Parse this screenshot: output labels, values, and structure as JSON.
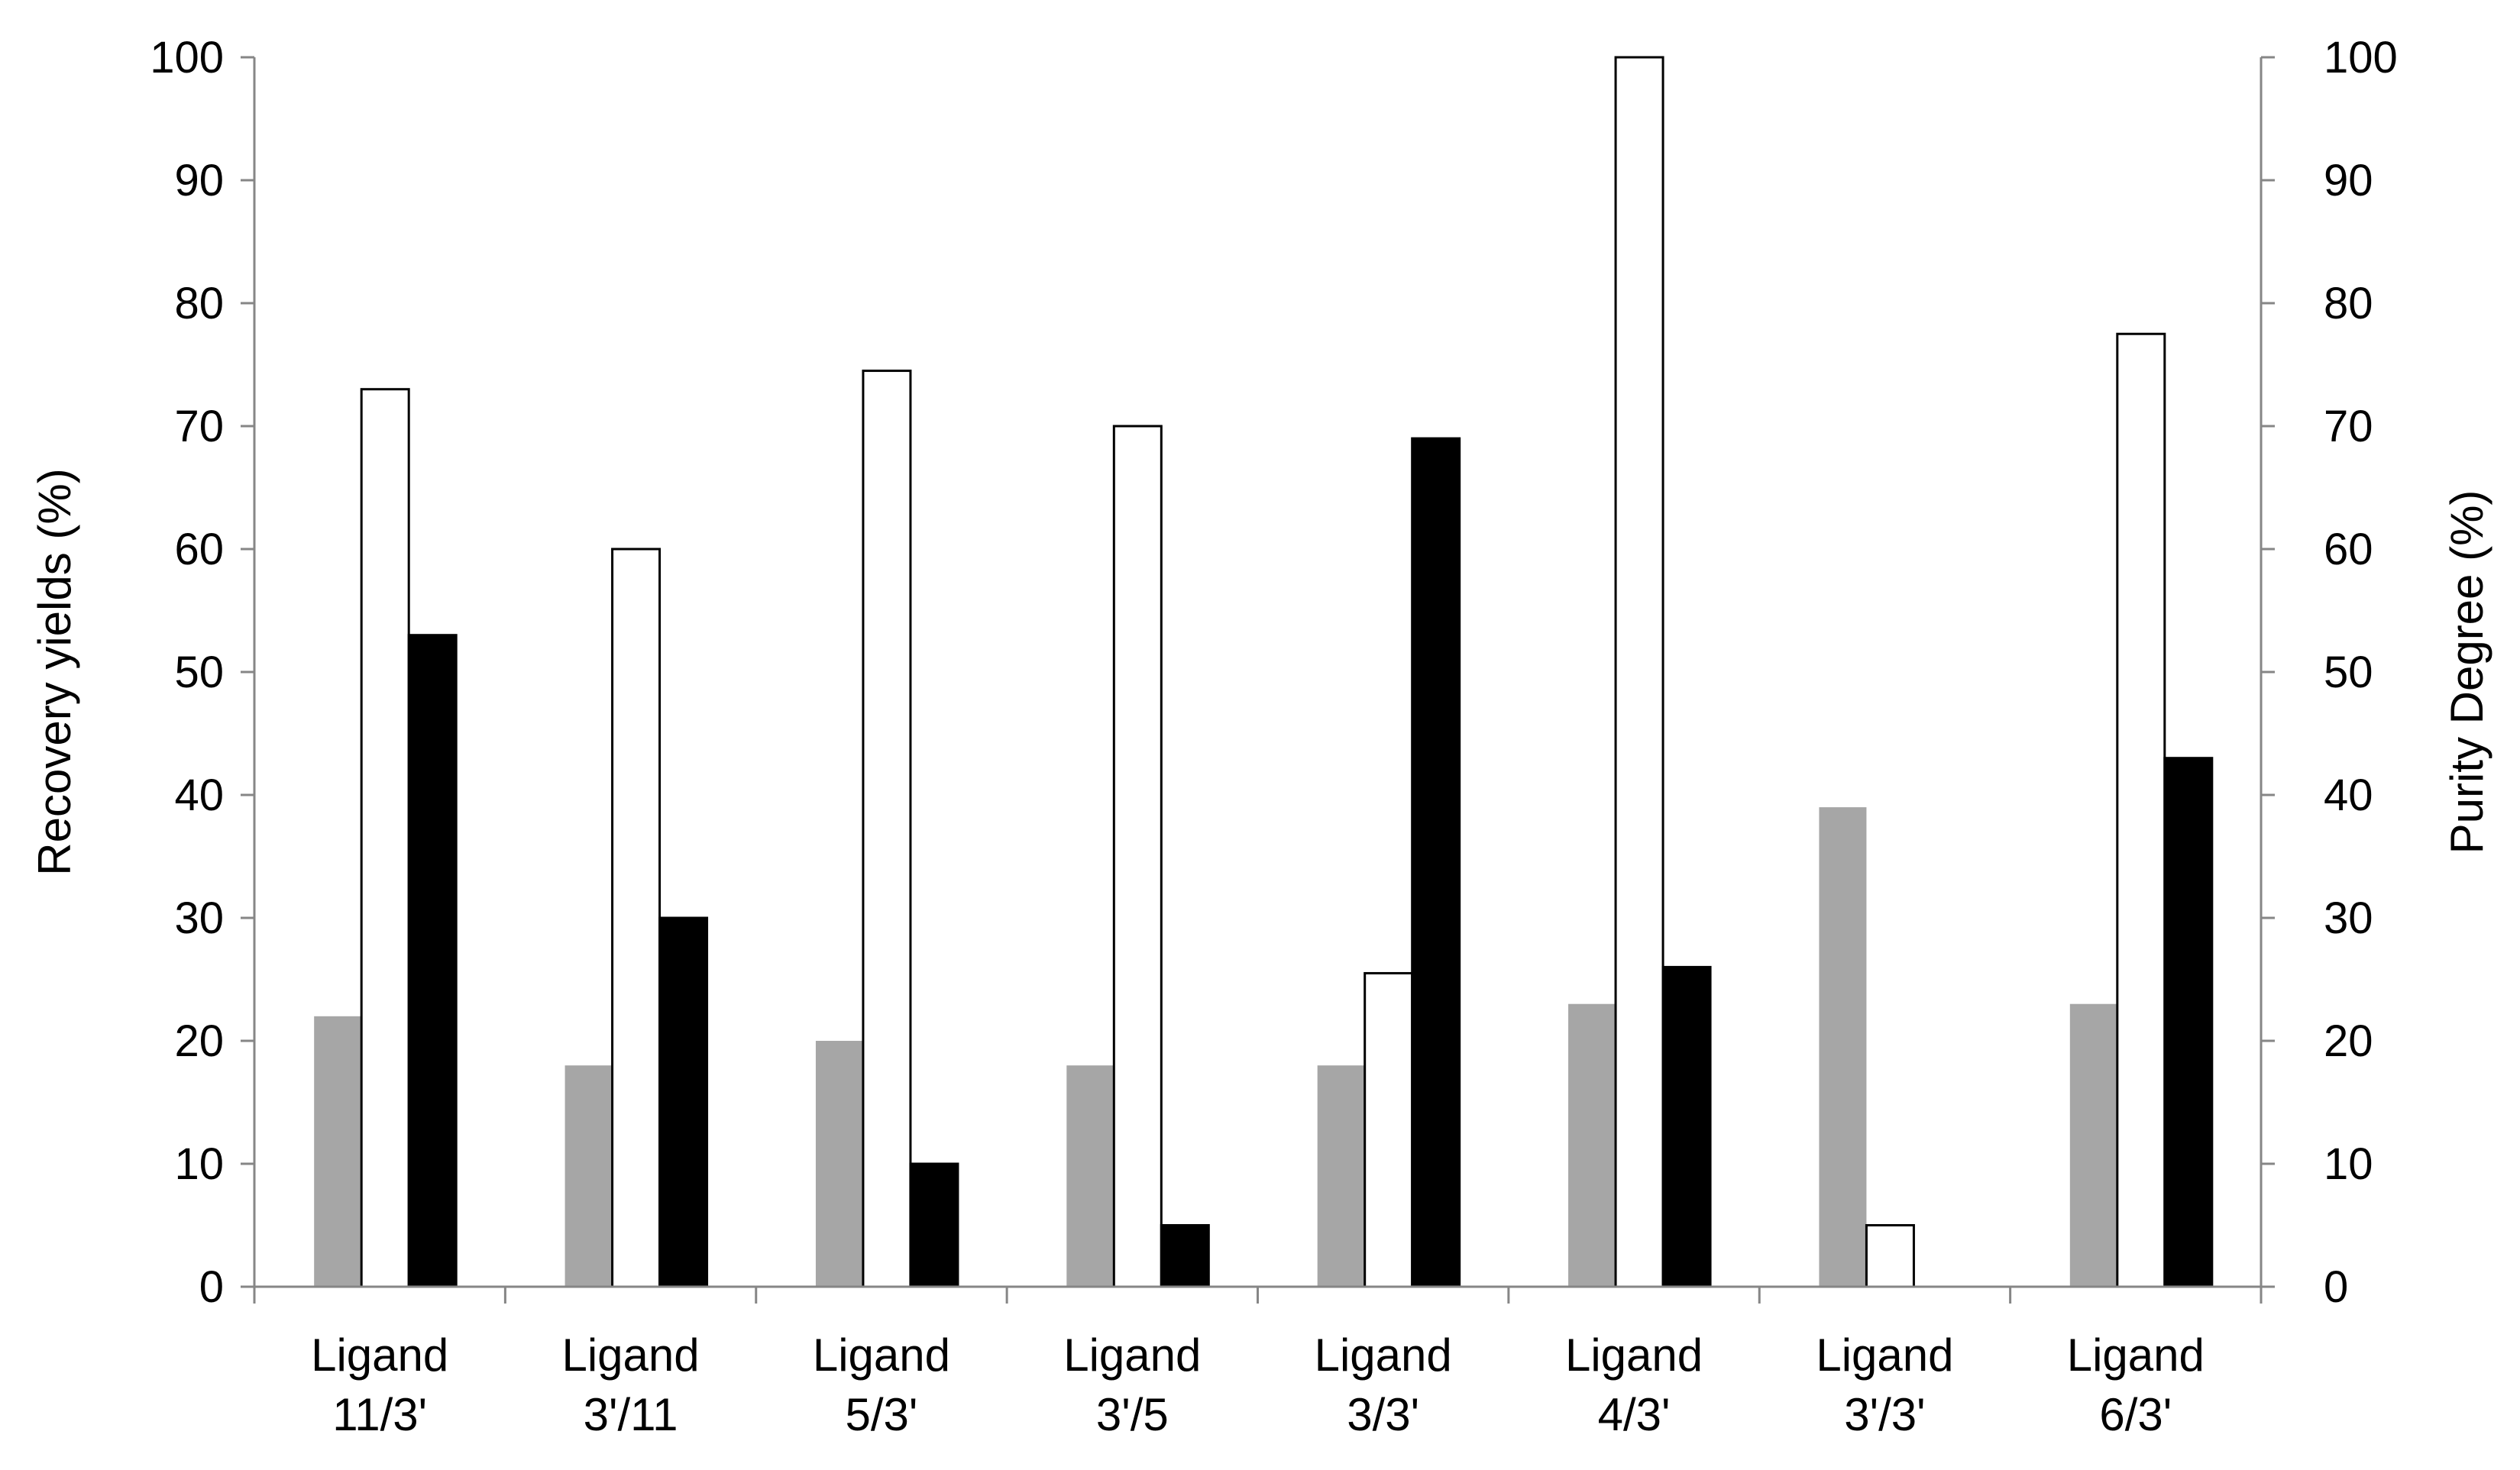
{
  "chart_data": {
    "type": "bar",
    "title": "",
    "xlabel": "",
    "ylabel": "Recovery yields (%)",
    "y2label": "Purity Degree (%)",
    "ylim": [
      0,
      100
    ],
    "y2lim": [
      0,
      100
    ],
    "yticks": [
      "0",
      "10",
      "20",
      "30",
      "40",
      "50",
      "60",
      "70",
      "80",
      "90",
      "100"
    ],
    "y2ticks": [
      "0",
      "10",
      "20",
      "30",
      "40",
      "50",
      "60",
      "70",
      "80",
      "90",
      "100"
    ],
    "grid": false,
    "legend": "none",
    "categories": [
      [
        "Ligand",
        "11/3'"
      ],
      [
        "Ligand",
        "3'/11"
      ],
      [
        "Ligand",
        "5/3'"
      ],
      [
        "Ligand",
        "3'/5"
      ],
      [
        "Ligand",
        "3/3'"
      ],
      [
        "Ligand",
        "4/3'"
      ],
      [
        "Ligand",
        "3'/3'"
      ],
      [
        "Ligand",
        "6/3'"
      ]
    ],
    "series": [
      {
        "color": "#a6a6a6",
        "stroke": "none",
        "axis": "left",
        "values": [
          22,
          18,
          20,
          18,
          18,
          23,
          39,
          23
        ]
      },
      {
        "color": "#ffffff",
        "stroke": "#000000",
        "axis": "left",
        "values": [
          73,
          60,
          74.5,
          70,
          25.5,
          100,
          5,
          77.5
        ]
      },
      {
        "color": "#000000",
        "stroke": "#000000",
        "axis": "right",
        "values": [
          53,
          30,
          10,
          5,
          69,
          26,
          0,
          43
        ]
      }
    ]
  }
}
